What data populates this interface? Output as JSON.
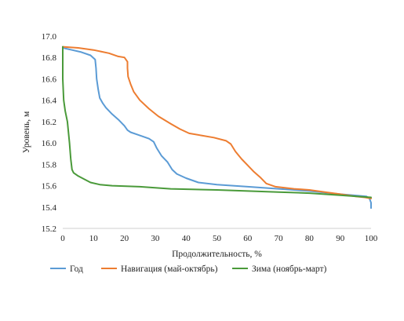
{
  "chart_data": {
    "type": "line",
    "title": "",
    "xlabel": "Продолжительность, %",
    "ylabel": "Уровень, м",
    "xlim": [
      0,
      100
    ],
    "ylim": [
      15.2,
      17.0
    ],
    "x_ticks": [
      "0",
      "10",
      "20",
      "30",
      "40",
      "50",
      "60",
      "70",
      "80",
      "90",
      "100"
    ],
    "y_ticks": [
      "15.2",
      "15.4",
      "15.6",
      "15.8",
      "16.0",
      "16.2",
      "16.4",
      "16.6",
      "16.8",
      "17.0"
    ],
    "grid": false,
    "legend_position": "bottom",
    "series": [
      {
        "name": "Год",
        "color": "#5b9bd5",
        "points": [
          [
            0,
            16.89
          ],
          [
            3,
            16.87
          ],
          [
            6,
            16.85
          ],
          [
            9,
            16.82
          ],
          [
            10.5,
            16.78
          ],
          [
            10.8,
            16.7
          ],
          [
            11,
            16.6
          ],
          [
            11.5,
            16.5
          ],
          [
            12,
            16.42
          ],
          [
            13,
            16.37
          ],
          [
            14,
            16.33
          ],
          [
            16,
            16.27
          ],
          [
            18,
            16.22
          ],
          [
            20,
            16.16
          ],
          [
            21,
            16.12
          ],
          [
            22,
            16.1
          ],
          [
            24,
            16.08
          ],
          [
            26,
            16.06
          ],
          [
            28,
            16.04
          ],
          [
            29.5,
            16.01
          ],
          [
            30.5,
            15.95
          ],
          [
            32,
            15.88
          ],
          [
            34,
            15.82
          ],
          [
            35.5,
            15.75
          ],
          [
            37,
            15.71
          ],
          [
            40,
            15.67
          ],
          [
            44,
            15.63
          ],
          [
            50,
            15.61
          ],
          [
            60,
            15.59
          ],
          [
            70,
            15.57
          ],
          [
            80,
            15.55
          ],
          [
            90,
            15.52
          ],
          [
            98.5,
            15.5
          ],
          [
            99.5,
            15.48
          ],
          [
            100,
            15.44
          ],
          [
            100,
            15.39
          ]
        ]
      },
      {
        "name": "Навигация (май-октябрь)",
        "color": "#ed7d31",
        "points": [
          [
            0,
            16.9
          ],
          [
            5,
            16.89
          ],
          [
            10,
            16.87
          ],
          [
            15,
            16.84
          ],
          [
            18,
            16.81
          ],
          [
            20,
            16.8
          ],
          [
            21,
            16.76
          ],
          [
            21,
            16.7
          ],
          [
            21.2,
            16.62
          ],
          [
            22,
            16.55
          ],
          [
            23,
            16.48
          ],
          [
            25,
            16.4
          ],
          [
            28,
            16.32
          ],
          [
            31,
            16.25
          ],
          [
            35,
            16.18
          ],
          [
            38,
            16.13
          ],
          [
            41,
            16.09
          ],
          [
            45,
            16.07
          ],
          [
            49,
            16.05
          ],
          [
            53,
            16.02
          ],
          [
            54.5,
            15.99
          ],
          [
            56,
            15.92
          ],
          [
            58,
            15.85
          ],
          [
            60,
            15.79
          ],
          [
            62,
            15.73
          ],
          [
            64,
            15.68
          ],
          [
            66,
            15.62
          ],
          [
            69,
            15.59
          ],
          [
            75,
            15.57
          ],
          [
            80,
            15.56
          ],
          [
            85,
            15.54
          ],
          [
            90,
            15.52
          ],
          [
            95,
            15.5
          ],
          [
            98,
            15.49
          ],
          [
            100,
            15.48
          ]
        ]
      },
      {
        "name": "Зима (ноябрь-март)",
        "color": "#4a9a3a",
        "points": [
          [
            0,
            16.9
          ],
          [
            0,
            16.6
          ],
          [
            0.3,
            16.4
          ],
          [
            0.8,
            16.3
          ],
          [
            1.5,
            16.2
          ],
          [
            2.2,
            16.0
          ],
          [
            2.6,
            15.85
          ],
          [
            3,
            15.75
          ],
          [
            3.5,
            15.72
          ],
          [
            5,
            15.69
          ],
          [
            7,
            15.66
          ],
          [
            9,
            15.63
          ],
          [
            12,
            15.61
          ],
          [
            16,
            15.6
          ],
          [
            25,
            15.59
          ],
          [
            35,
            15.57
          ],
          [
            50,
            15.56
          ],
          [
            60,
            15.55
          ],
          [
            70,
            15.54
          ],
          [
            80,
            15.53
          ],
          [
            90,
            15.51
          ],
          [
            100,
            15.49
          ]
        ]
      }
    ]
  }
}
